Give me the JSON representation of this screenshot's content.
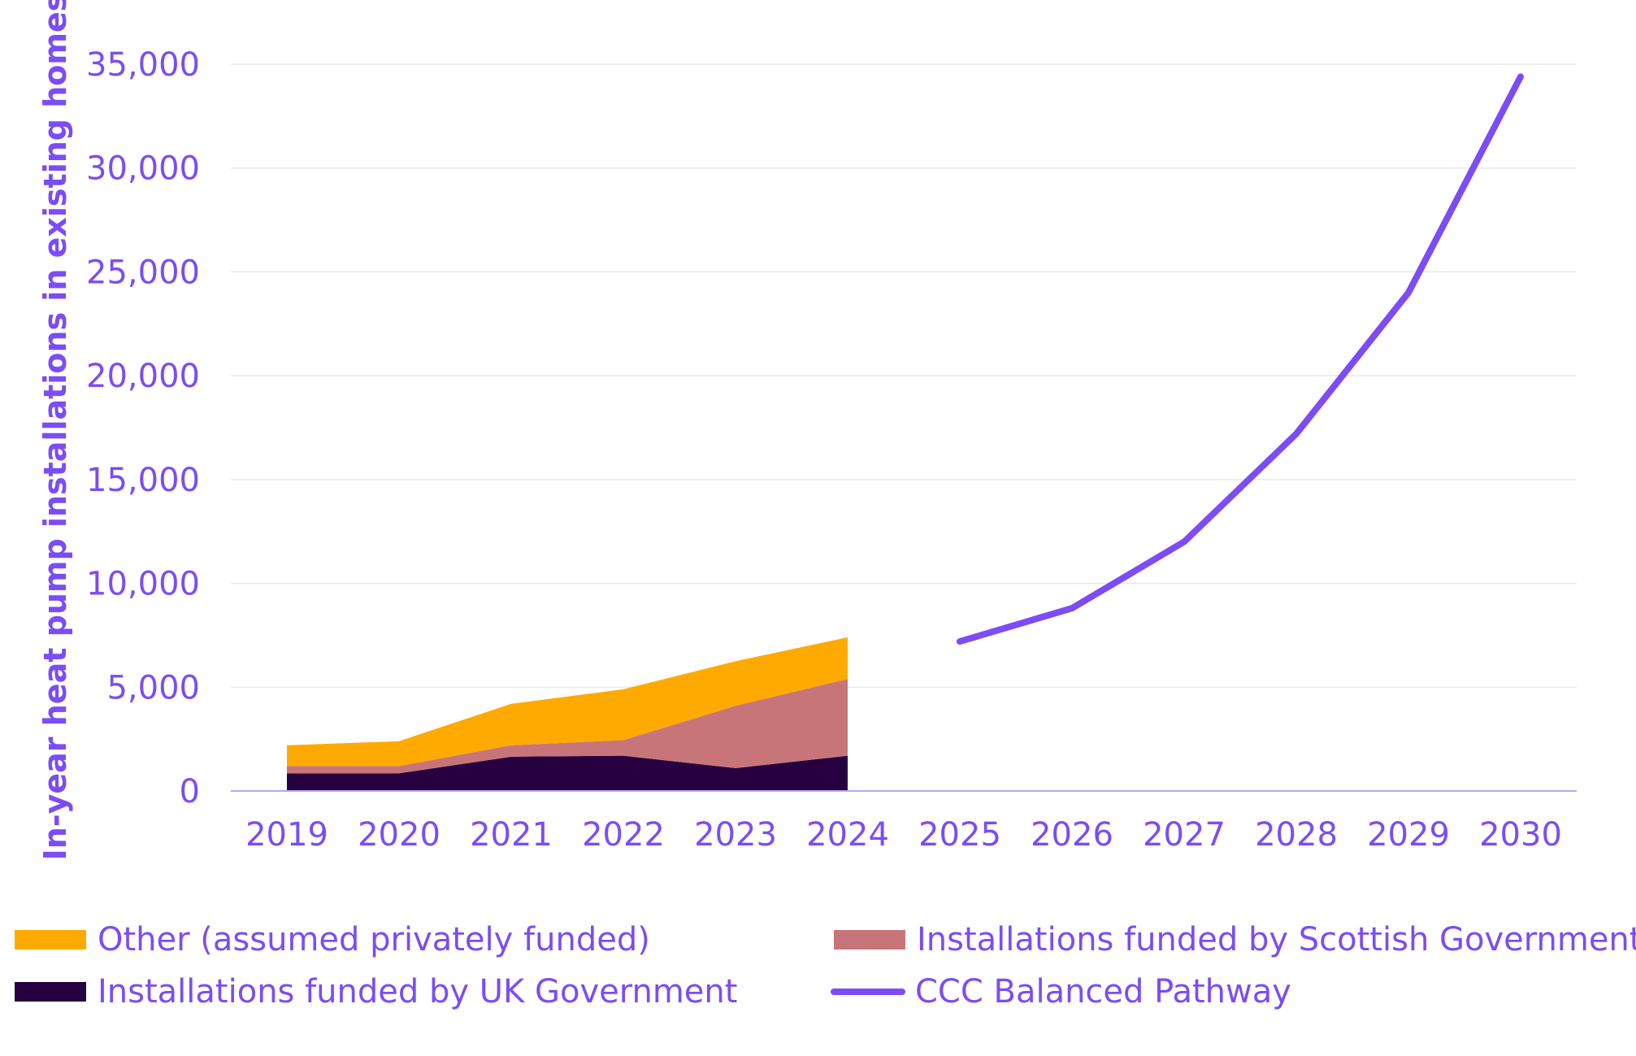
{
  "chart_data": {
    "type": "area",
    "ylabel": "In-year heat pump installations in existing homes",
    "xlabel": "",
    "ylim": [
      0,
      35000
    ],
    "yticks": [
      0,
      5000,
      10000,
      15000,
      20000,
      25000,
      30000,
      35000
    ],
    "ytick_labels": [
      "0",
      "5,000",
      "10,000",
      "15,000",
      "20,000",
      "25,000",
      "30,000",
      "35,000"
    ],
    "categories": [
      "2019",
      "2020",
      "2021",
      "2022",
      "2023",
      "2024",
      "2025",
      "2026",
      "2027",
      "2028",
      "2029",
      "2030"
    ],
    "grid": "horizontal",
    "legend_position": "bottom",
    "stacked_series": [
      {
        "name": "Installations funded by UK Government",
        "color": "#27003f",
        "values": [
          850,
          850,
          1650,
          1700,
          1100,
          1700,
          null,
          null,
          null,
          null,
          null,
          null
        ]
      },
      {
        "name": "Installations funded by Scottish Government",
        "color": "#c8757a",
        "values": [
          350,
          350,
          550,
          750,
          3000,
          3700,
          null,
          null,
          null,
          null,
          null,
          null
        ]
      },
      {
        "name": "Other (assumed privately funded)",
        "color": "#ffaa00",
        "values": [
          1000,
          1200,
          2000,
          2450,
          2150,
          2000,
          null,
          null,
          null,
          null,
          null,
          null
        ]
      }
    ],
    "line_series": [
      {
        "name": "CCC Balanced Pathway",
        "color": "#7b4cf7",
        "values": [
          null,
          null,
          null,
          null,
          null,
          null,
          7200,
          8800,
          12000,
          17200,
          24000,
          34400
        ]
      }
    ]
  },
  "legend": {
    "other": "Other (assumed privately funded)",
    "scottish": "Installations funded by Scottish Government",
    "uk": "Installations funded by UK Government",
    "ccc": "CCC Balanced Pathway"
  }
}
